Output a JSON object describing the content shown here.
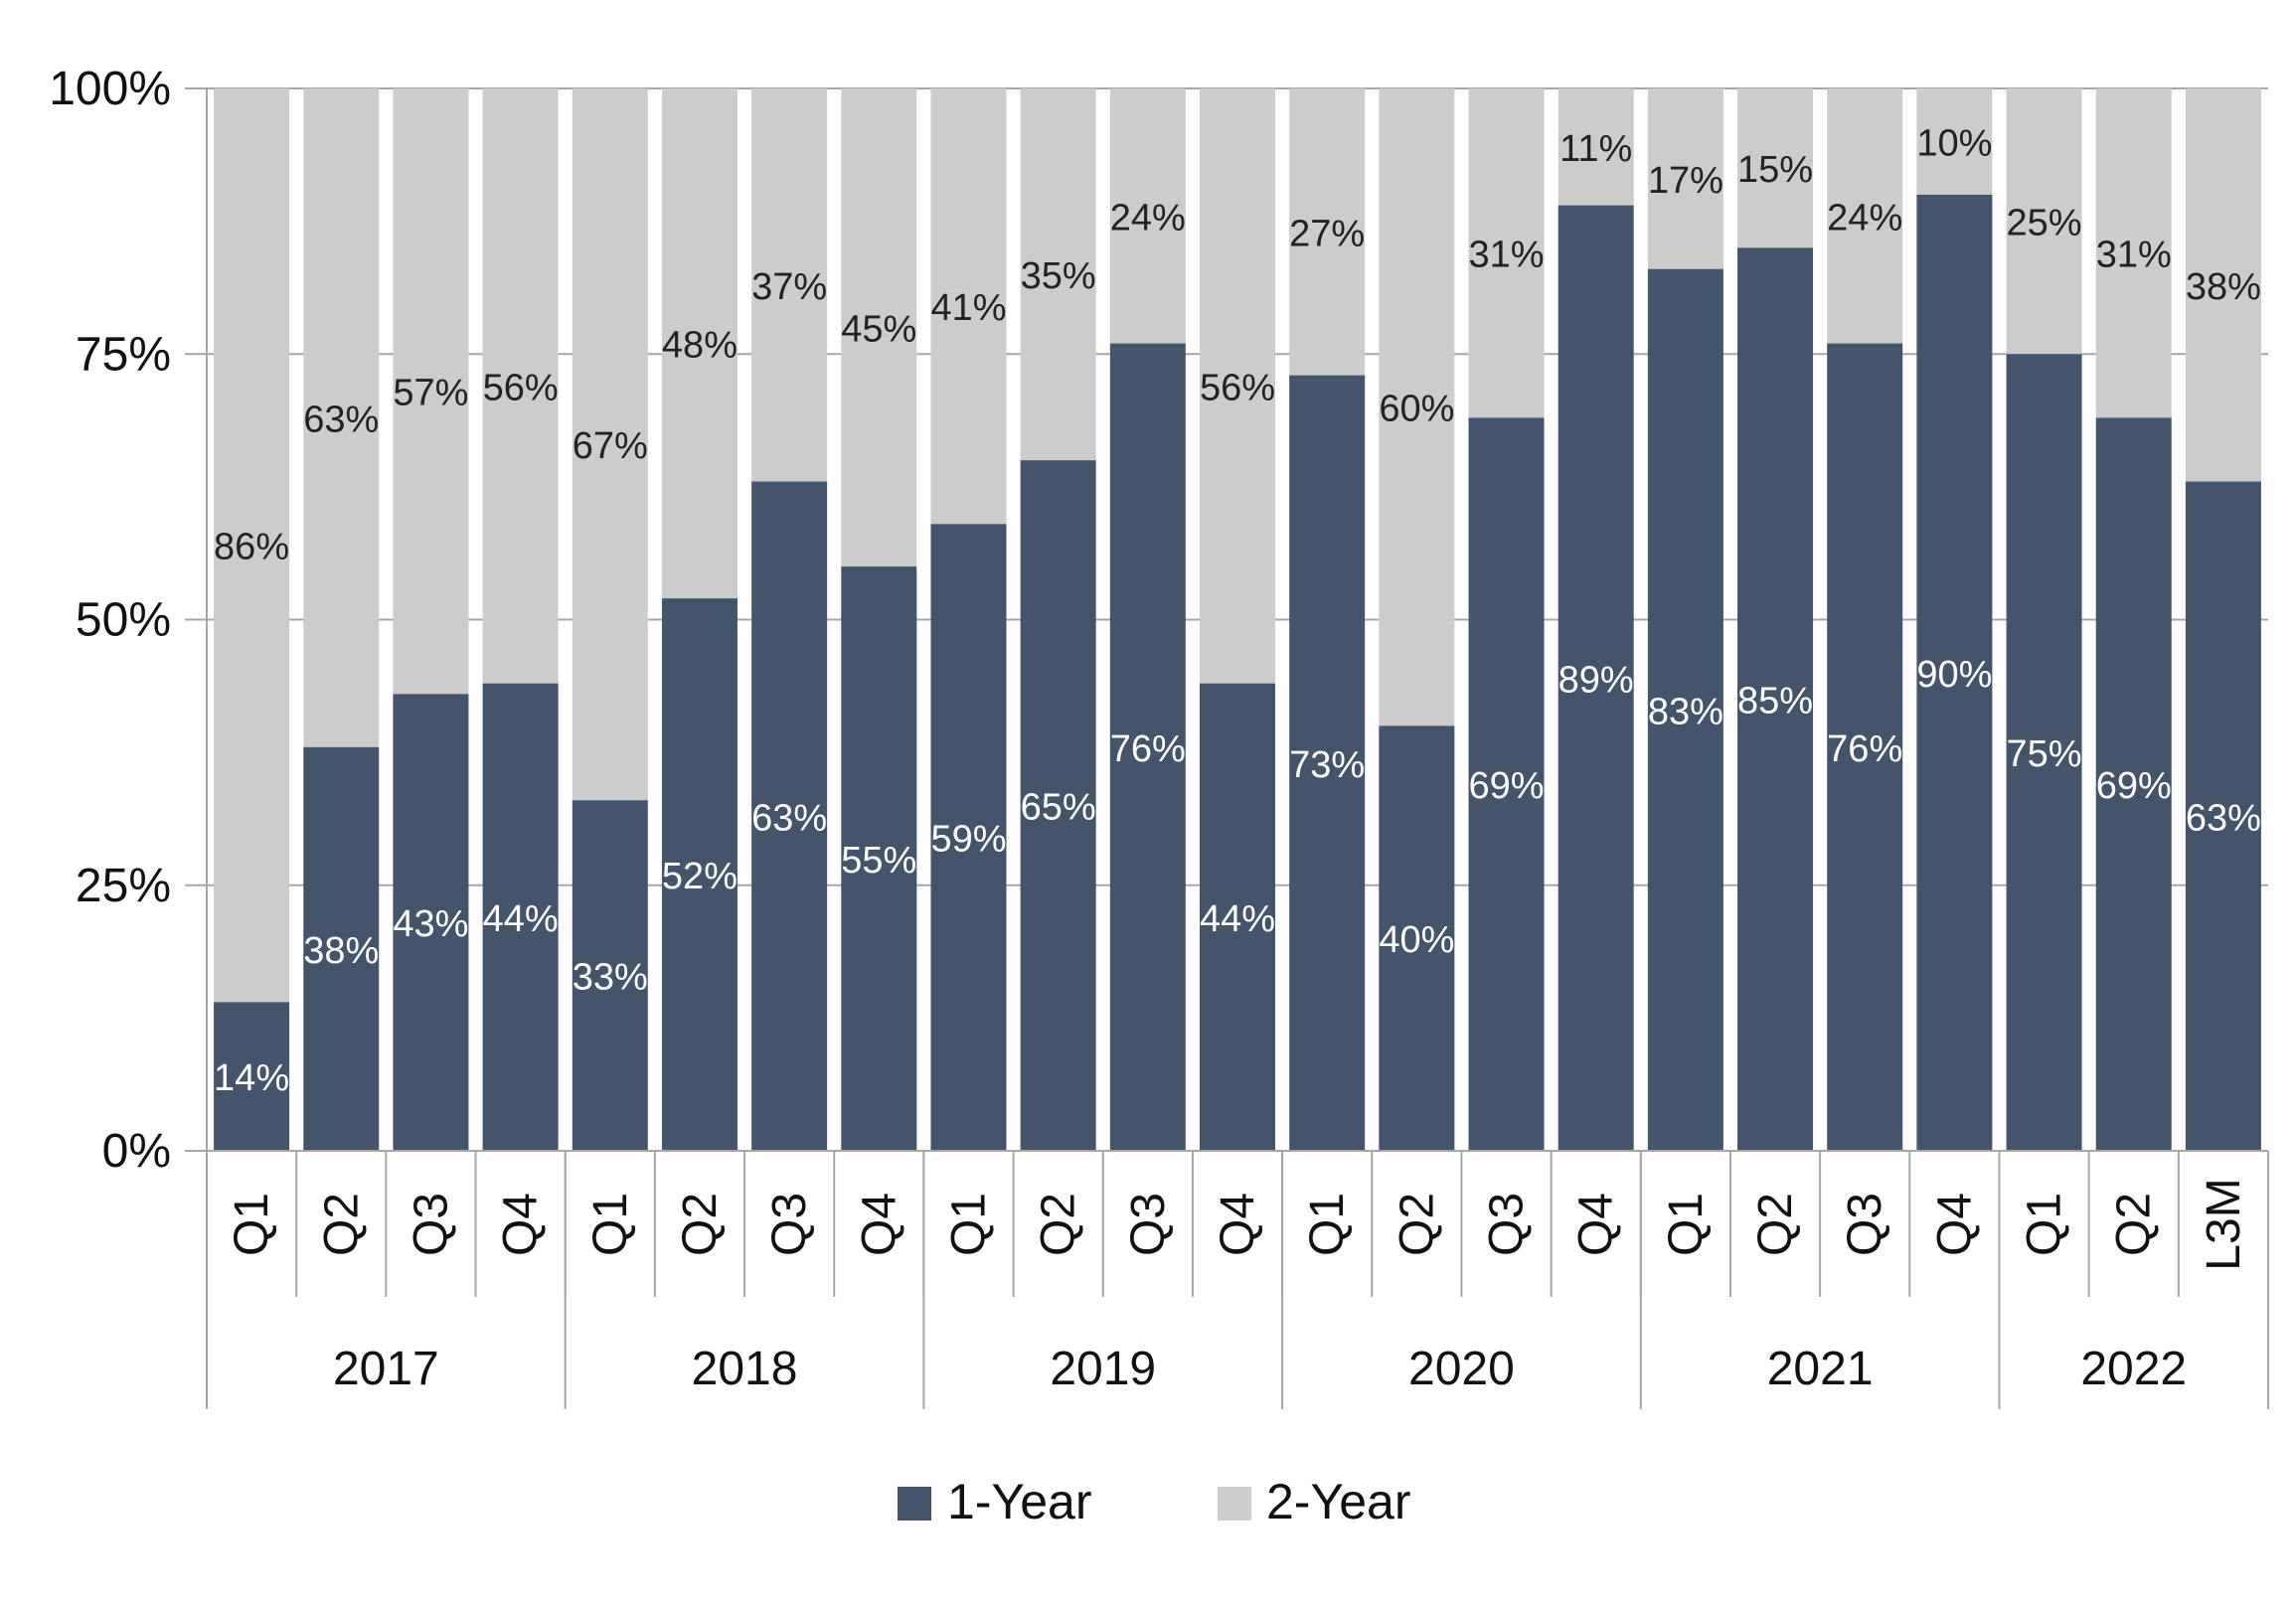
{
  "chart_data": {
    "type": "bar",
    "stacked": true,
    "percent_stacked": true,
    "categories": [
      "Q1",
      "Q2",
      "Q3",
      "Q4",
      "Q1",
      "Q2",
      "Q3",
      "Q4",
      "Q1",
      "Q2",
      "Q3",
      "Q4",
      "Q1",
      "Q2",
      "Q3",
      "Q4",
      "Q1",
      "Q2",
      "Q3",
      "Q4",
      "Q1",
      "Q2",
      "L3M"
    ],
    "groups": [
      {
        "label": "2017",
        "count": 4
      },
      {
        "label": "2018",
        "count": 4
      },
      {
        "label": "2019",
        "count": 4
      },
      {
        "label": "2020",
        "count": 4
      },
      {
        "label": "2021",
        "count": 4
      },
      {
        "label": "2022",
        "count": 3
      }
    ],
    "series": [
      {
        "name": "1-Year",
        "color": "#44546a",
        "values": [
          14,
          38,
          43,
          44,
          33,
          52,
          63,
          55,
          59,
          65,
          76,
          44,
          73,
          40,
          69,
          89,
          83,
          85,
          76,
          90,
          75,
          69,
          63
        ],
        "labels": [
          "14%",
          "38%",
          "43%",
          "44%",
          "33%",
          "52%",
          "63%",
          "55%",
          "59%",
          "65%",
          "76%",
          "44%",
          "73%",
          "40%",
          "69%",
          "89%",
          "83%",
          "85%",
          "76%",
          "90%",
          "75%",
          "69%",
          "63%"
        ]
      },
      {
        "name": "2-Year",
        "color": "#cccccc",
        "values": [
          86,
          63,
          57,
          56,
          67,
          48,
          37,
          45,
          41,
          35,
          24,
          56,
          27,
          60,
          31,
          11,
          17,
          15,
          24,
          10,
          25,
          31,
          38
        ],
        "labels": [
          "86%",
          "63%",
          "57%",
          "56%",
          "67%",
          "48%",
          "37%",
          "45%",
          "41%",
          "35%",
          "24%",
          "56%",
          "27%",
          "60%",
          "31%",
          "11%",
          "17%",
          "15%",
          "24%",
          "10%",
          "25%",
          "31%",
          "38%"
        ]
      }
    ],
    "yticks": [
      "0%",
      "25%",
      "50%",
      "75%",
      "100%"
    ],
    "ylim": [
      0,
      100
    ],
    "grid": true,
    "legend_position": "bottom-center",
    "title": "",
    "xlabel": "",
    "ylabel": ""
  }
}
